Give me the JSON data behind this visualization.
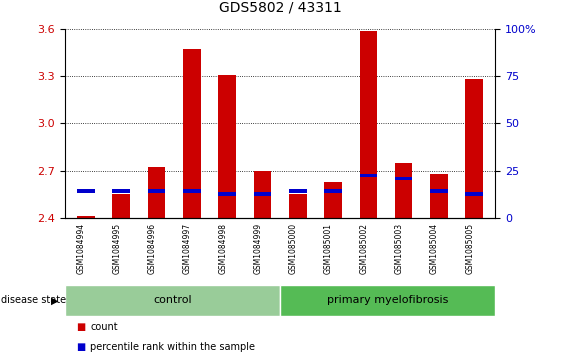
{
  "title": "GDS5802 / 43311",
  "samples": [
    "GSM1084994",
    "GSM1084995",
    "GSM1084996",
    "GSM1084997",
    "GSM1084998",
    "GSM1084999",
    "GSM1085000",
    "GSM1085001",
    "GSM1085002",
    "GSM1085003",
    "GSM1085004",
    "GSM1085005"
  ],
  "count_values": [
    2.41,
    2.55,
    2.72,
    3.47,
    3.31,
    2.7,
    2.55,
    2.63,
    3.59,
    2.75,
    2.68,
    3.28
  ],
  "percentile_values": [
    2.57,
    2.57,
    2.57,
    2.57,
    2.55,
    2.55,
    2.57,
    2.57,
    2.67,
    2.65,
    2.57,
    2.55
  ],
  "ymin": 2.4,
  "ymax": 3.6,
  "yticks_left": [
    2.4,
    2.7,
    3.0,
    3.3,
    3.6
  ],
  "yticks_right": [
    0,
    25,
    50,
    75,
    100
  ],
  "control_count": 6,
  "primary_count": 6,
  "control_label": "control",
  "primary_label": "primary myelofibrosis",
  "disease_state_label": "disease state",
  "legend_count_label": "count",
  "legend_pct_label": "percentile rank within the sample",
  "count_color": "#cc0000",
  "pct_color": "#0000cc",
  "control_bg": "#99cc99",
  "primary_bg": "#55bb55",
  "bar_width": 0.5,
  "grid_color": "#000000",
  "baseline": 2.4,
  "xtick_bg": "#bbbbbb"
}
